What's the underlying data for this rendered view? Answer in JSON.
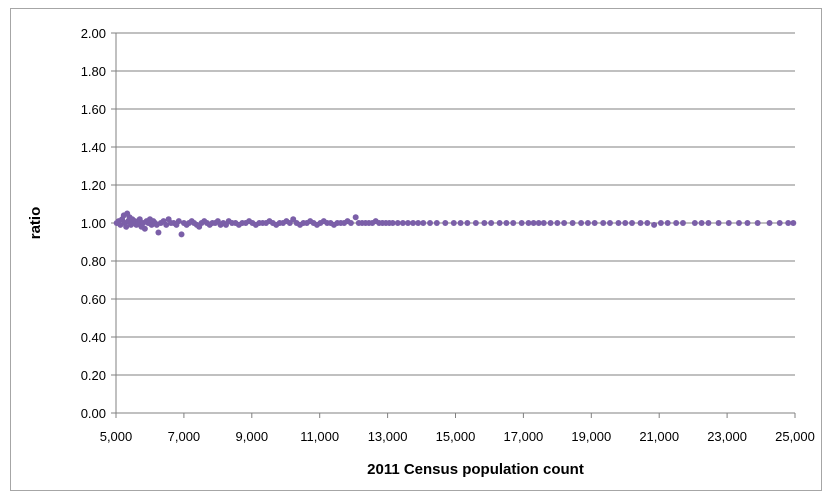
{
  "chart_data": {
    "type": "scatter",
    "title": "",
    "xlabel": "2011 Census population count",
    "ylabel": "ratio",
    "xlim": [
      5000,
      25000
    ],
    "ylim": [
      0,
      2
    ],
    "x_ticks": [
      "5,000",
      "7,000",
      "9,000",
      "11,000",
      "13,000",
      "15,000",
      "17,000",
      "19,000",
      "21,000",
      "23,000",
      "25,000"
    ],
    "y_ticks": [
      "0.00",
      "0.20",
      "0.40",
      "0.60",
      "0.80",
      "1.00",
      "1.20",
      "1.40",
      "1.60",
      "1.80",
      "2.00"
    ],
    "grid": true,
    "marker_color": "#7b5fa8",
    "points": [
      [
        5020,
        1.0
      ],
      [
        5080,
        1.01
      ],
      [
        5130,
        0.99
      ],
      [
        5180,
        1.02
      ],
      [
        5230,
        1.04
      ],
      [
        5260,
        1.0
      ],
      [
        5300,
        0.98
      ],
      [
        5330,
        1.05
      ],
      [
        5360,
        1.01
      ],
      [
        5400,
        1.03
      ],
      [
        5440,
        0.99
      ],
      [
        5480,
        1.02
      ],
      [
        5520,
        1.0
      ],
      [
        5560,
        1.01
      ],
      [
        5600,
        0.99
      ],
      [
        5650,
        1.0
      ],
      [
        5700,
        1.02
      ],
      [
        5750,
        0.98
      ],
      [
        5800,
        1.0
      ],
      [
        5850,
        0.97
      ],
      [
        5900,
        1.01
      ],
      [
        5950,
        1.0
      ],
      [
        6000,
        1.02
      ],
      [
        6050,
        0.99
      ],
      [
        6100,
        1.01
      ],
      [
        6150,
        1.0
      ],
      [
        6200,
        0.99
      ],
      [
        6250,
        0.95
      ],
      [
        6320,
        1.0
      ],
      [
        6400,
        1.01
      ],
      [
        6480,
        0.99
      ],
      [
        6550,
        1.02
      ],
      [
        6620,
        1.0
      ],
      [
        6700,
        1.0
      ],
      [
        6780,
        0.99
      ],
      [
        6850,
        1.01
      ],
      [
        6930,
        0.94
      ],
      [
        7000,
        1.0
      ],
      [
        7080,
        0.99
      ],
      [
        7150,
        1.0
      ],
      [
        7230,
        1.01
      ],
      [
        7300,
        1.0
      ],
      [
        7380,
        0.99
      ],
      [
        7450,
        0.98
      ],
      [
        7520,
        1.0
      ],
      [
        7600,
        1.01
      ],
      [
        7680,
        1.0
      ],
      [
        7760,
        0.99
      ],
      [
        7840,
        1.0
      ],
      [
        7920,
        1.0
      ],
      [
        8000,
        1.01
      ],
      [
        8080,
        0.99
      ],
      [
        8160,
        1.0
      ],
      [
        8240,
        0.99
      ],
      [
        8320,
        1.01
      ],
      [
        8420,
        1.0
      ],
      [
        8520,
        1.0
      ],
      [
        8620,
        0.99
      ],
      [
        8720,
        1.0
      ],
      [
        8820,
        1.0
      ],
      [
        8920,
        1.01
      ],
      [
        9020,
        1.0
      ],
      [
        9120,
        0.99
      ],
      [
        9220,
        1.0
      ],
      [
        9320,
        1.0
      ],
      [
        9420,
        1.0
      ],
      [
        9520,
        1.01
      ],
      [
        9620,
        1.0
      ],
      [
        9720,
        0.99
      ],
      [
        9820,
        1.0
      ],
      [
        9920,
        1.0
      ],
      [
        10020,
        1.01
      ],
      [
        10120,
        1.0
      ],
      [
        10220,
        1.02
      ],
      [
        10320,
        1.0
      ],
      [
        10420,
        0.99
      ],
      [
        10520,
        1.0
      ],
      [
        10620,
        1.0
      ],
      [
        10720,
        1.01
      ],
      [
        10820,
        1.0
      ],
      [
        10920,
        0.99
      ],
      [
        11020,
        1.0
      ],
      [
        11120,
        1.01
      ],
      [
        11220,
        1.0
      ],
      [
        11320,
        1.0
      ],
      [
        11420,
        0.99
      ],
      [
        11520,
        1.0
      ],
      [
        11620,
        1.0
      ],
      [
        11720,
        1.0
      ],
      [
        11820,
        1.01
      ],
      [
        11920,
        1.0
      ],
      [
        12060,
        1.03
      ],
      [
        12150,
        1.0
      ],
      [
        12250,
        1.0
      ],
      [
        12350,
        1.0
      ],
      [
        12450,
        1.0
      ],
      [
        12550,
        1.0
      ],
      [
        12650,
        1.01
      ],
      [
        12750,
        1.0
      ],
      [
        12850,
        1.0
      ],
      [
        12950,
        1.0
      ],
      [
        13050,
        1.0
      ],
      [
        13150,
        1.0
      ],
      [
        13300,
        1.0
      ],
      [
        13450,
        1.0
      ],
      [
        13600,
        1.0
      ],
      [
        13750,
        1.0
      ],
      [
        13900,
        1.0
      ],
      [
        14050,
        1.0
      ],
      [
        14250,
        1.0
      ],
      [
        14450,
        1.0
      ],
      [
        14700,
        1.0
      ],
      [
        14950,
        1.0
      ],
      [
        15150,
        1.0
      ],
      [
        15350,
        1.0
      ],
      [
        15600,
        1.0
      ],
      [
        15850,
        1.0
      ],
      [
        16050,
        1.0
      ],
      [
        16300,
        1.0
      ],
      [
        16500,
        1.0
      ],
      [
        16700,
        1.0
      ],
      [
        16950,
        1.0
      ],
      [
        17150,
        1.0
      ],
      [
        17300,
        1.0
      ],
      [
        17450,
        1.0
      ],
      [
        17600,
        1.0
      ],
      [
        17800,
        1.0
      ],
      [
        18000,
        1.0
      ],
      [
        18200,
        1.0
      ],
      [
        18450,
        1.0
      ],
      [
        18700,
        1.0
      ],
      [
        18900,
        1.0
      ],
      [
        19100,
        1.0
      ],
      [
        19350,
        1.0
      ],
      [
        19550,
        1.0
      ],
      [
        19800,
        1.0
      ],
      [
        20000,
        1.0
      ],
      [
        20200,
        1.0
      ],
      [
        20450,
        1.0
      ],
      [
        20650,
        1.0
      ],
      [
        20850,
        0.99
      ],
      [
        21050,
        1.0
      ],
      [
        21250,
        1.0
      ],
      [
        21500,
        1.0
      ],
      [
        21700,
        1.0
      ],
      [
        22050,
        1.0
      ],
      [
        22250,
        1.0
      ],
      [
        22450,
        1.0
      ],
      [
        22750,
        1.0
      ],
      [
        23050,
        1.0
      ],
      [
        23350,
        1.0
      ],
      [
        23600,
        1.0
      ],
      [
        23900,
        1.0
      ],
      [
        24250,
        1.0
      ],
      [
        24550,
        1.0
      ],
      [
        24800,
        1.0
      ],
      [
        24950,
        1.0
      ]
    ]
  }
}
